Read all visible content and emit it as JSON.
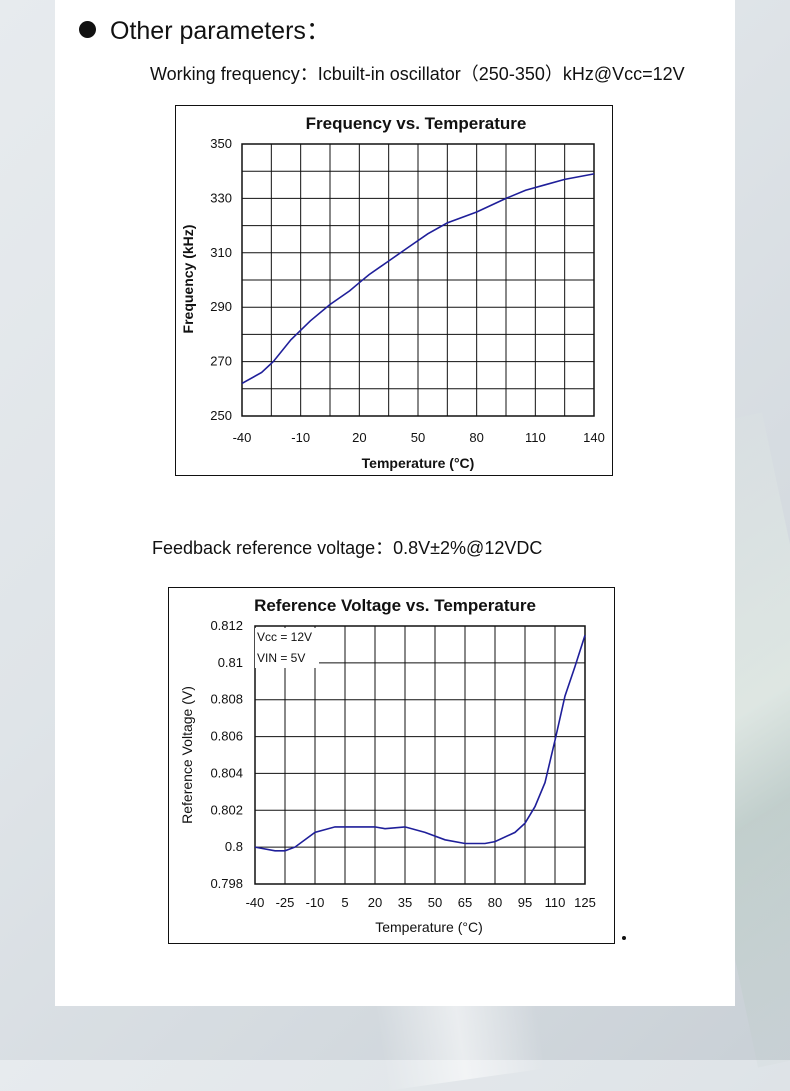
{
  "section": {
    "heading": "Other parameters："
  },
  "params": {
    "working_frequency": "Working frequency：Icbuilt-in oscillator（250-350）kHz@Vcc=12V",
    "feedback_voltage": "Feedback reference voltage：0.8V±2%@12VDC"
  },
  "colors": {
    "curve": "#1f1f9a",
    "grid": "#111111",
    "panel": "#ffffff"
  },
  "chart_data": [
    {
      "type": "line",
      "title": "Frequency vs. Temperature",
      "xlabel": "Temperature (°C)",
      "ylabel": "Frequency (kHz)",
      "xlim": [
        -40,
        140
      ],
      "ylim": [
        250,
        350
      ],
      "x_ticks": [
        "-40",
        "-10",
        "20",
        "50",
        "80",
        "110",
        "140"
      ],
      "y_ticks": [
        "350",
        "330",
        "310",
        "290",
        "270",
        "250"
      ],
      "grid": true,
      "series": [
        {
          "x": [
            -40,
            -30,
            -24,
            -15,
            -5,
            5,
            15,
            20,
            25,
            35,
            45,
            55,
            65,
            80,
            95,
            105,
            115,
            125,
            140
          ],
          "y": [
            262,
            266,
            270,
            278,
            285,
            291,
            296,
            299,
            302,
            307,
            312,
            317,
            321,
            325,
            330,
            333,
            335,
            337,
            339
          ]
        }
      ]
    },
    {
      "type": "line",
      "title": "Reference Voltage vs. Temperature",
      "xlabel": "Temperature (°C)",
      "ylabel": "Reference Voltage (V)",
      "xlim": [
        -40,
        125
      ],
      "ylim": [
        0.798,
        0.812
      ],
      "x_ticks": [
        "-40",
        "-25",
        "-10",
        "5",
        "20",
        "35",
        "50",
        "65",
        "80",
        "95",
        "110",
        "125"
      ],
      "y_ticks": [
        "0.812",
        "0.81",
        "0.808",
        "0.806",
        "0.804",
        "0.802",
        "0.8",
        "0.798"
      ],
      "grid": true,
      "annotations": [
        "Vcc = 12V",
        "VIN = 5V"
      ],
      "series": [
        {
          "x": [
            -40,
            -30,
            -25,
            -20,
            -10,
            0,
            10,
            20,
            25,
            35,
            45,
            55,
            65,
            75,
            80,
            90,
            95,
            100,
            105,
            110,
            115,
            120,
            125
          ],
          "y": [
            0.8,
            0.7998,
            0.7998,
            0.8,
            0.8008,
            0.8011,
            0.8011,
            0.8011,
            0.801,
            0.8011,
            0.8008,
            0.8004,
            0.8002,
            0.8002,
            0.8003,
            0.8008,
            0.8013,
            0.8022,
            0.8035,
            0.8058,
            0.8082,
            0.8098,
            0.8115
          ]
        }
      ]
    }
  ]
}
